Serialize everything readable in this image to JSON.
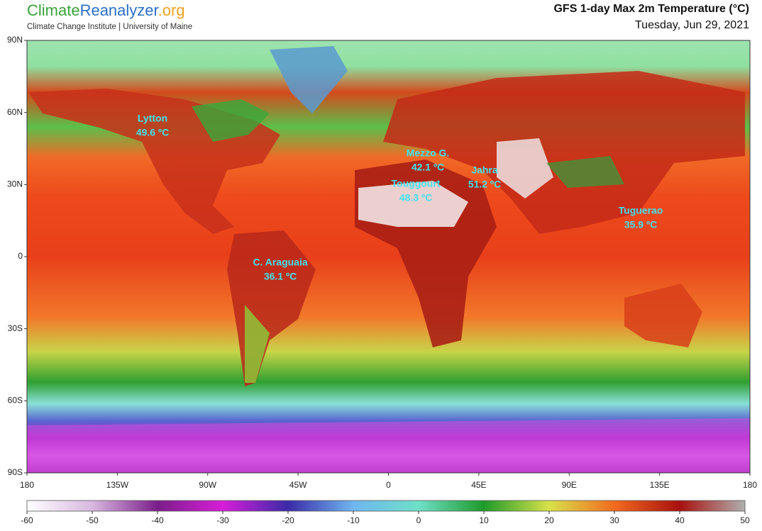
{
  "header": {
    "brand": [
      "Climate",
      "Reanalyzer",
      ".org"
    ],
    "tagline": "Climate Change Institute | University of Maine",
    "title": "GFS 1-day Max 2m Temperature (°C)",
    "date": "Tuesday, Jun 29, 2021"
  },
  "map": {
    "lat_labels": [
      "90N",
      "60N",
      "30N",
      "0",
      "30S",
      "60S",
      "90S"
    ],
    "lon_labels": [
      "180",
      "135W",
      "90W",
      "45W",
      "0",
      "45E",
      "90E",
      "135E",
      "180"
    ],
    "places": [
      {
        "name": "Lytton",
        "temp": "49.6 ºC"
      },
      {
        "name": "Mezzo G.",
        "temp": "42.1 ºC"
      },
      {
        "name": "Touggourt",
        "temp": "48.3 ºC"
      },
      {
        "name": "Jahra",
        "temp": "51.2 ºC"
      },
      {
        "name": "Tuguerao",
        "temp": "35.9 ºC"
      },
      {
        "name": "C. Araguaia",
        "temp": "36.1 ºC"
      }
    ]
  },
  "colorbar": {
    "ticks": [
      -60,
      -50,
      -40,
      -30,
      -20,
      -10,
      0,
      10,
      20,
      30,
      40,
      50
    ],
    "colors": [
      "#ffffff",
      "#d8b8e0",
      "#7a1e8a",
      "#d81ed8",
      "#3a2aa8",
      "#6fb6f0",
      "#6ee0c8",
      "#1e9a2a",
      "#d8e24a",
      "#f26a1e",
      "#a8100e",
      "#b0b0b0"
    ]
  }
}
